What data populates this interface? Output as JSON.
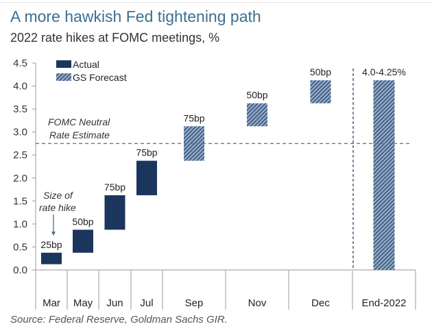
{
  "header": {
    "title": "A more hawkish Fed tightening path",
    "subtitle": "2022 rate hikes at FOMC meetings, %"
  },
  "footer": {
    "source": "Source: Federal Reserve, Goldman Sachs GIR."
  },
  "colors": {
    "actual": "#1b365d",
    "forecast_fill": "#6b8bb0",
    "forecast_stripe": "#1b365d",
    "neutral_line": "#c0504d",
    "divider_line": "#1b365d",
    "axis": "#aaaaaa"
  },
  "chart_data": {
    "type": "bar",
    "subtype": "floating-waterfall",
    "title": "A more hawkish Fed tightening path",
    "subtitle": "2022 rate hikes at FOMC meetings, %",
    "xlabel": "",
    "ylabel": "",
    "ylim": [
      0,
      4.5
    ],
    "yticks": [
      0.0,
      0.5,
      1.0,
      1.5,
      2.0,
      2.5,
      3.0,
      3.5,
      4.0,
      4.5
    ],
    "ytick_labels": [
      "0.0",
      "0.5",
      "1.0",
      "1.5",
      "2.0",
      "2.5",
      "3.0",
      "3.5",
      "4.0",
      "4.5"
    ],
    "grid": false,
    "categories": [
      "Mar",
      "May",
      "Jun",
      "Jul",
      "Sep",
      "Nov",
      "Dec",
      "End-2022"
    ],
    "bars": [
      {
        "category": "Mar",
        "low": 0.125,
        "high": 0.375,
        "series": "Actual",
        "label": "25bp"
      },
      {
        "category": "May",
        "low": 0.375,
        "high": 0.875,
        "series": "Actual",
        "label": "50bp"
      },
      {
        "category": "Jun",
        "low": 0.875,
        "high": 1.625,
        "series": "Actual",
        "label": "75bp"
      },
      {
        "category": "Jul",
        "low": 1.625,
        "high": 2.375,
        "series": "Actual",
        "label": "75bp"
      },
      {
        "category": "Sep",
        "low": 2.375,
        "high": 3.125,
        "series": "GS Forecast",
        "label": "75bp"
      },
      {
        "category": "Nov",
        "low": 3.125,
        "high": 3.625,
        "series": "GS Forecast",
        "label": "50bp"
      },
      {
        "category": "Dec",
        "low": 3.625,
        "high": 4.125,
        "series": "GS Forecast",
        "label": "50bp"
      },
      {
        "category": "End-2022",
        "low": 0.0,
        "high": 4.125,
        "series": "GS Forecast",
        "label": "4.0-4.25%"
      }
    ],
    "legend": {
      "placement": "top-left",
      "entries": [
        {
          "name": "Actual",
          "style": "solid"
        },
        {
          "name": "GS Forecast",
          "style": "hatched"
        }
      ]
    },
    "reference_lines": [
      {
        "name": "FOMC Neutral Rate Estimate",
        "y": 2.75,
        "style": "dashed",
        "label_lines": [
          "FOMC Neutral",
          "Rate Estimate"
        ]
      }
    ],
    "annotations": [
      {
        "text_lines": [
          "Size of",
          "rate hike"
        ],
        "points_to": "Mar",
        "arrow": "down"
      }
    ]
  }
}
